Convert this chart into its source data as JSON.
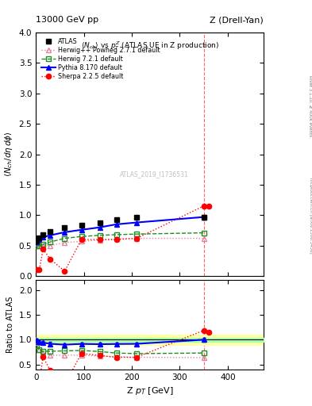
{
  "title_left": "13000 GeV pp",
  "title_right": "Z (Drell-Yan)",
  "panel_title": "<N_{ch}> vs p_{T}^{Z} (ATLAS UE in Z production)",
  "watermark": "ATLAS_2019_I1736531",
  "ylabel_main": "<N_{ch}/d#eta d#phi>",
  "ylabel_ratio": "Ratio to ATLAS",
  "xlabel": "Z p_{T} [GeV]",
  "right_label_top": "Rivet 3.1.10, ≥ 400k events",
  "right_label_bot": "mcplots.cern.ch [arXiv:1306.3436]",
  "xlim": [
    0,
    475
  ],
  "ylim_main": [
    0,
    4
  ],
  "ylim_ratio": [
    0.4,
    2.2
  ],
  "vline_x": 350,
  "atlas_x": [
    2,
    7,
    15,
    30,
    60,
    95,
    133,
    168,
    210,
    350
  ],
  "atlas_y": [
    0.57,
    0.63,
    0.68,
    0.73,
    0.8,
    0.83,
    0.88,
    0.93,
    0.96,
    0.97
  ],
  "atlas_yerr": [
    0.025,
    0.025,
    0.025,
    0.025,
    0.025,
    0.025,
    0.025,
    0.025,
    0.025,
    0.04
  ],
  "atlas_color": "black",
  "herwig_powheg_x": [
    2,
    7,
    15,
    30,
    60,
    95,
    133,
    168,
    210,
    350
  ],
  "herwig_powheg_y": [
    0.54,
    0.5,
    0.5,
    0.5,
    0.55,
    0.57,
    0.59,
    0.61,
    0.62,
    0.62
  ],
  "herwig_powheg_color": "#e880a0",
  "herwig72_x": [
    2,
    7,
    15,
    30,
    60,
    95,
    133,
    168,
    210,
    350
  ],
  "herwig72_y": [
    0.5,
    0.5,
    0.52,
    0.56,
    0.62,
    0.65,
    0.67,
    0.68,
    0.69,
    0.71
  ],
  "herwig72_color": "#228B22",
  "pythia_x": [
    2,
    7,
    15,
    30,
    60,
    95,
    133,
    168,
    210,
    350
  ],
  "pythia_y": [
    0.56,
    0.6,
    0.64,
    0.67,
    0.72,
    0.76,
    0.8,
    0.85,
    0.88,
    0.97
  ],
  "pythia_color": "blue",
  "sherpa_x": [
    2,
    7,
    15,
    30,
    60,
    95,
    133,
    168,
    210,
    350,
    360
  ],
  "sherpa_y": [
    0.1,
    0.1,
    0.44,
    0.28,
    0.08,
    0.6,
    0.6,
    0.6,
    0.62,
    1.15,
    1.15
  ],
  "sherpa_color": "red",
  "atlas_band_outer": 0.1,
  "atlas_band_inner": 0.04,
  "atlas_band_color": "#ffffaa",
  "atlas_band_inner_color": "#aaffaa",
  "yticks_main": [
    0,
    0.5,
    1.0,
    1.5,
    2.0,
    2.5,
    3.0,
    3.5,
    4.0
  ],
  "yticks_ratio": [
    0.5,
    1.0,
    1.5,
    2.0
  ]
}
